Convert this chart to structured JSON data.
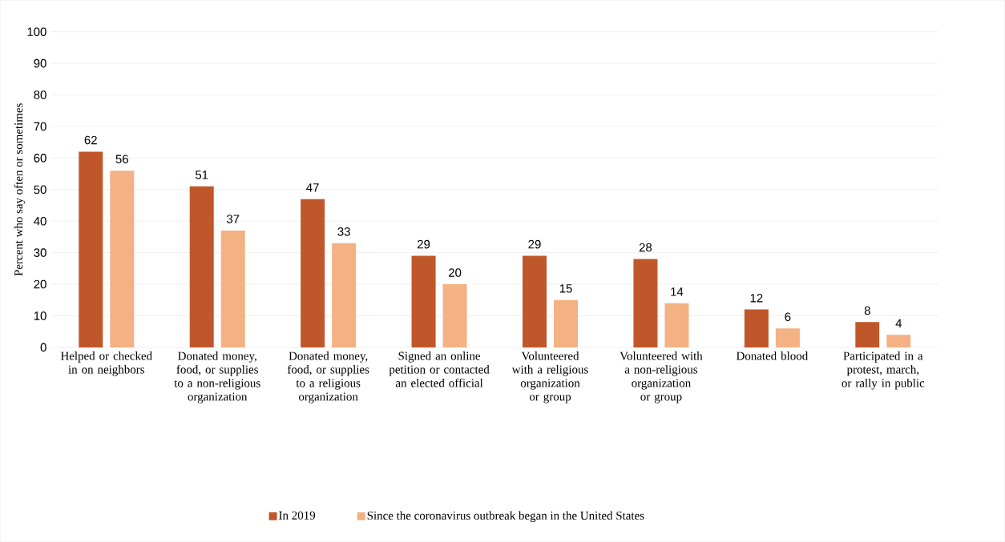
{
  "chart_data": {
    "type": "bar",
    "ylabel": "Percent who say often or sometimes",
    "categories": [
      "Helped or checked in on neighbors",
      "Donated money, food, or supplies to a non-religious organization",
      "Donated money, food, or supplies to a religious organization",
      "Signed an online petition or contacted an elected official",
      "Volunteered with a religious organization or group",
      "Volunteered with a non-religious organization or group",
      "Donated blood",
      "Participated in a protest, march, or rally in public"
    ],
    "series": [
      {
        "name": "In 2019",
        "color": "#c0572a",
        "values": [
          62,
          51,
          47,
          29,
          29,
          28,
          12,
          8
        ]
      },
      {
        "name": "Since the coronavirus outbreak began in the United States",
        "color": "#f4b183",
        "values": [
          56,
          37,
          33,
          20,
          15,
          14,
          6,
          4
        ]
      }
    ],
    "ylim": [
      0,
      100
    ],
    "yticks": [
      0,
      10,
      20,
      30,
      40,
      50,
      60,
      70,
      80,
      90,
      100
    ],
    "grid": "y",
    "legend": "bottom",
    "data_labels": true
  }
}
